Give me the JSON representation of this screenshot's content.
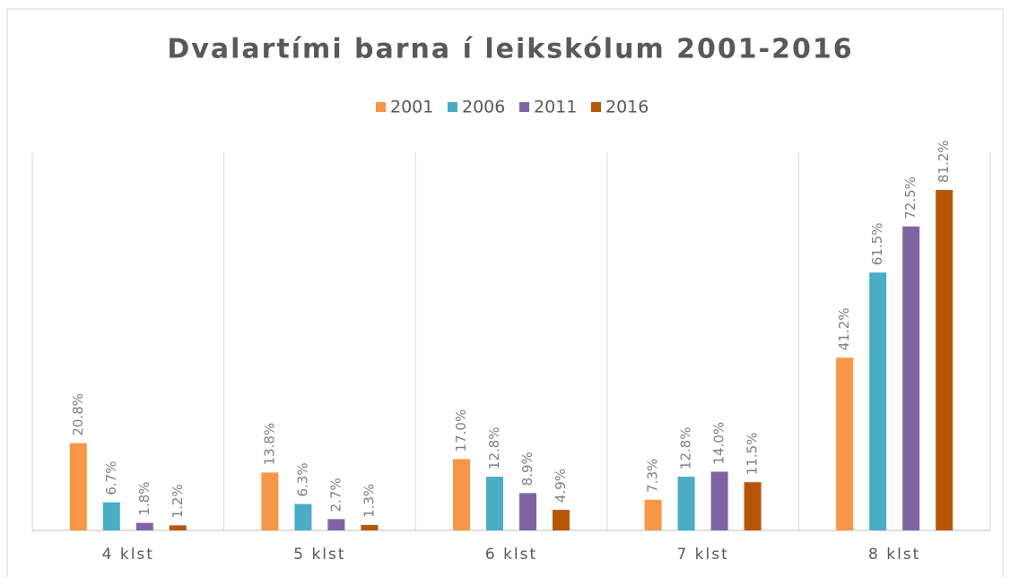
{
  "chart_data": {
    "type": "bar",
    "title": "Dvalartími barna í leikskólum 2001-2016",
    "categories": [
      "4 klst",
      "5 klst",
      "6 klst",
      "7 klst",
      "8 klst"
    ],
    "series": [
      {
        "name": "2001",
        "color": "#f79646",
        "values": [
          20.8,
          13.8,
          17.0,
          7.3,
          41.2
        ],
        "value_labels": [
          "20.8%",
          "13.8%",
          "17.0%",
          "7.3%",
          "41.2%"
        ]
      },
      {
        "name": "2006",
        "color": "#4bacc6",
        "values": [
          6.7,
          6.3,
          12.8,
          12.8,
          61.5
        ],
        "value_labels": [
          "6.7%",
          "6.3%",
          "12.8%",
          "12.8%",
          "61.5%"
        ]
      },
      {
        "name": "2011",
        "color": "#8064a2",
        "values": [
          1.8,
          2.7,
          8.9,
          14.0,
          72.5
        ],
        "value_labels": [
          "1.8%",
          "2.7%",
          "8.9%",
          "14.0%",
          "72.5%"
        ]
      },
      {
        "name": "2016",
        "color": "#b65708",
        "values": [
          1.2,
          1.3,
          4.9,
          11.5,
          81.2
        ],
        "value_labels": [
          "1.2%",
          "1.3%",
          "4.9%",
          "11.5%",
          "81.2%"
        ]
      }
    ],
    "legend": "top"
  }
}
